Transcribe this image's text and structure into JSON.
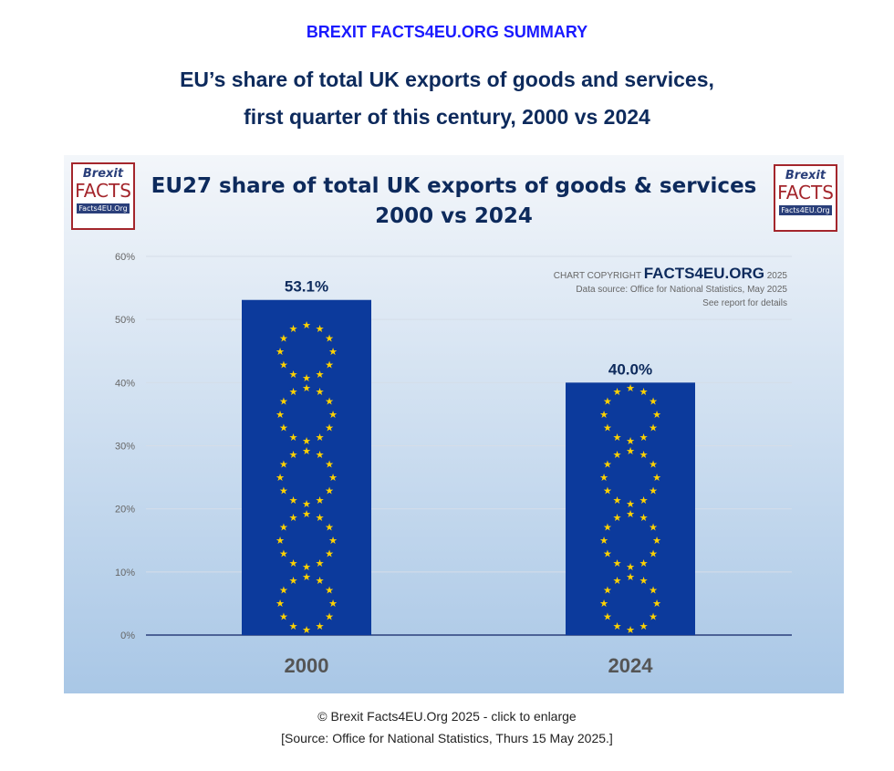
{
  "header": {
    "brand": "BREXIT FACTS4EU.ORG SUMMARY",
    "title_line1": "EU’s share of total UK exports of goods and services,",
    "title_line2": "first quarter of this century, 2000 vs 2024"
  },
  "logo": {
    "line1": "Brexit",
    "line2": "FACTS",
    "line3": "Facts4EU.Org"
  },
  "copyright": {
    "prefix": "CHART COPYRIGHT",
    "brand": "FACTS4EU.ORG",
    "year": "2025",
    "source": "Data source: Office for National Statistics, May 2025",
    "note": "See report for details"
  },
  "colors": {
    "bar": "#0c3a9c",
    "star": "#ffd200",
    "title": "#0d2a5c"
  },
  "chart_data": {
    "type": "bar",
    "title": "EU27 share of total UK exports of goods & services",
    "subtitle": "2000 vs 2024",
    "categories": [
      "2000",
      "2024"
    ],
    "values": [
      53.1,
      40.0
    ],
    "data_labels": [
      "53.1%",
      "40.0%"
    ],
    "ylim": [
      0,
      60
    ],
    "yticks": [
      "0%",
      "10%",
      "20%",
      "30%",
      "40%",
      "50%",
      "60%"
    ],
    "grid": true,
    "bar_fill": "EU flag"
  },
  "footer": {
    "credit": "© Brexit Facts4EU.Org 2025 - click to enlarge",
    "source": "[Source: Office for National Statistics, Thurs 15 May 2025.]"
  }
}
